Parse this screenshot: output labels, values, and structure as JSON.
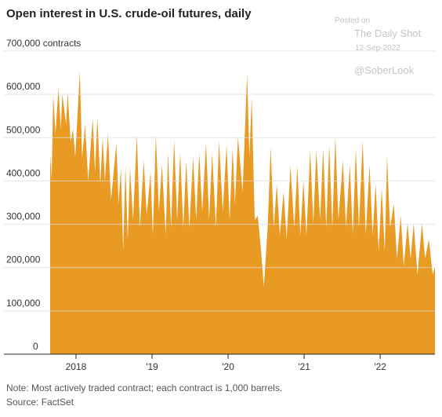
{
  "chart_data": {
    "type": "area",
    "title": "Open interest in U.S. crude-oil futures, daily",
    "note": "Note: Most actively traded contract; each contract is 1,000 barrels.",
    "source": "Source: FactSet",
    "watermark": [
      "Posted on",
      "The Daily Shot",
      "12-Sep-2022",
      "@SoberLook"
    ],
    "color": "#e89a23",
    "grid": true,
    "x": [
      2017.66,
      2017.68,
      2017.7,
      2017.73,
      2017.77,
      2017.8,
      2017.82,
      2017.87,
      2017.89,
      2017.93,
      2017.96,
      2017.99,
      2018.05,
      2018.08,
      2018.12,
      2018.16,
      2018.22,
      2018.25,
      2018.28,
      2018.32,
      2018.35,
      2018.38,
      2018.42,
      2018.46,
      2018.53,
      2018.56,
      2018.59,
      2018.62,
      2018.65,
      2018.68,
      2018.71,
      2018.75,
      2018.8,
      2018.84,
      2018.89,
      2018.93,
      2018.98,
      2019.01,
      2019.05,
      2019.09,
      2019.13,
      2019.18,
      2019.21,
      2019.25,
      2019.29,
      2019.33,
      2019.37,
      2019.41,
      2019.45,
      2019.49,
      2019.54,
      2019.58,
      2019.62,
      2019.66,
      2019.71,
      2019.75,
      2019.79,
      2019.84,
      2019.88,
      2019.93,
      2019.98,
      2020.02,
      2020.06,
      2020.09,
      2020.13,
      2020.19,
      2020.25,
      2020.28,
      2020.31,
      2020.35,
      2020.39,
      2020.43,
      2020.47,
      2020.52,
      2020.56,
      2020.6,
      2020.64,
      2020.68,
      2020.73,
      2020.77,
      2020.82,
      2020.87,
      2020.91,
      2020.95,
      2020.99,
      2021.03,
      2021.08,
      2021.12,
      2021.16,
      2021.21,
      2021.25,
      2021.29,
      2021.33,
      2021.37,
      2021.41,
      2021.45,
      2021.51,
      2021.55,
      2021.6,
      2021.64,
      2021.68,
      2021.72,
      2021.77,
      2021.81,
      2021.86,
      2021.9,
      2021.94,
      2021.98,
      2022.02,
      2022.06,
      2022.09,
      2022.13,
      2022.18,
      2022.22,
      2022.27,
      2022.31,
      2022.36,
      2022.4,
      2022.44,
      2022.49,
      2022.55,
      2022.59,
      2022.64,
      2022.69,
      2022.72
    ],
    "values": [
      460000,
      405000,
      598000,
      510000,
      615000,
      520000,
      600000,
      530000,
      605000,
      490000,
      520000,
      455000,
      653000,
      455000,
      530000,
      400000,
      545000,
      420000,
      547000,
      393000,
      500000,
      400000,
      510000,
      355000,
      487000,
      347000,
      430000,
      238000,
      435000,
      265000,
      430000,
      310000,
      505000,
      292000,
      447000,
      320000,
      420000,
      275000,
      505000,
      330000,
      438000,
      275000,
      465000,
      292000,
      496000,
      310000,
      465000,
      292000,
      447000,
      292000,
      456000,
      310000,
      465000,
      330000,
      487000,
      310000,
      465000,
      292000,
      493000,
      330000,
      483000,
      310000,
      475000,
      347000,
      502000,
      375000,
      647000,
      456000,
      593000,
      310000,
      320000,
      247000,
      156000,
      292000,
      478000,
      292000,
      393000,
      275000,
      375000,
      265000,
      435000,
      292000,
      435000,
      275000,
      400000,
      275000,
      471000,
      302000,
      471000,
      310000,
      475000,
      292000,
      483000,
      292000,
      502000,
      310000,
      447000,
      292000,
      438000,
      275000,
      475000,
      292000,
      493000,
      275000,
      438000,
      275000,
      393000,
      238000,
      383000,
      238000,
      456000,
      292000,
      347000,
      220000,
      320000,
      202000,
      302000,
      220000,
      302000,
      184000,
      302000,
      220000,
      265000,
      184000,
      202000
    ],
    "xlim": [
      2017.66,
      2022.72
    ],
    "xticks": [
      {
        "value": 2018,
        "label": "2018"
      },
      {
        "value": 2019,
        "label": "'19"
      },
      {
        "value": 2020,
        "label": "'20"
      },
      {
        "value": 2021,
        "label": "'21"
      },
      {
        "value": 2022,
        "label": "'22"
      }
    ],
    "ylim": [
      0,
      700000
    ],
    "yticks": [
      0,
      {
        "value": 100000,
        "label": "100,000"
      },
      {
        "value": 200000,
        "label": "200,000"
      },
      {
        "value": 300000,
        "label": "300,000"
      },
      {
        "value": 400000,
        "label": "400,000"
      },
      {
        "value": 500000,
        "label": "500,000"
      },
      {
        "value": 600000,
        "label": "600,000"
      },
      {
        "value": 700000,
        "label": "700,000 contracts"
      }
    ]
  }
}
